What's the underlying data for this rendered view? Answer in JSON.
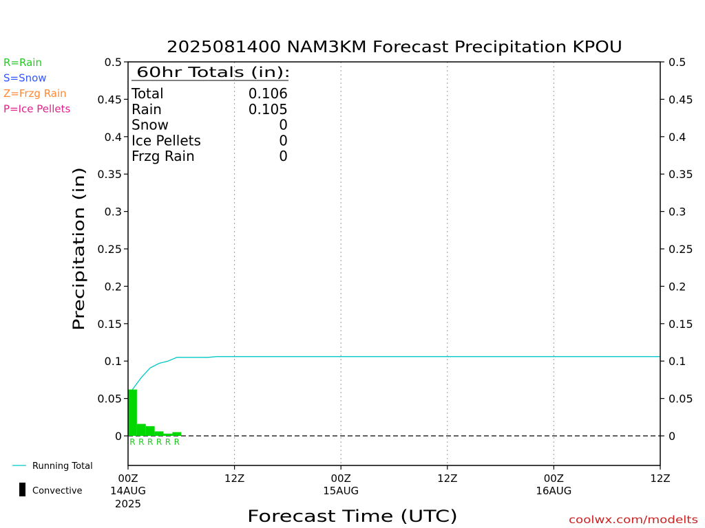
{
  "chart_data": {
    "type": "bar",
    "title": "2025081400 NAM3KM Forecast Precipitation KPOU",
    "xlabel": "Forecast Time (UTC)",
    "ylabel": "Precipitation (in)",
    "ylim": [
      0,
      0.5
    ],
    "xlim_hours": [
      0,
      60
    ],
    "grid": "vertical dotted at every 12 hours",
    "y_ticks": [
      "0",
      "0.05",
      "0.1",
      "0.15",
      "0.2",
      "0.25",
      "0.3",
      "0.35",
      "0.4",
      "0.45",
      "0.5"
    ],
    "x_ticks": [
      {
        "hour": 0,
        "label": "00Z",
        "date": "14AUG",
        "year": "2025"
      },
      {
        "hour": 12,
        "label": "12Z",
        "date": "",
        "year": ""
      },
      {
        "hour": 24,
        "label": "00Z",
        "date": "15AUG",
        "year": ""
      },
      {
        "hour": 36,
        "label": "12Z",
        "date": "",
        "year": ""
      },
      {
        "hour": 48,
        "label": "00Z",
        "date": "16AUG",
        "year": ""
      },
      {
        "hour": 60,
        "label": "12Z",
        "date": "",
        "year": ""
      }
    ],
    "legend": [
      {
        "label": "R=Rain",
        "color": "#22cc22"
      },
      {
        "label": "S=Snow",
        "color": "#3355ff"
      },
      {
        "label": "Z=Frzg Rain",
        "color": "#ff8833"
      },
      {
        "label": "P=Ice Pellets",
        "color": "#e0208c"
      }
    ],
    "series_legend": [
      {
        "label": "Running Total",
        "kind": "line",
        "color": "#00c8c8"
      },
      {
        "label": "Convective",
        "kind": "bar",
        "color": "#000000"
      }
    ],
    "bar_color": "#00d800",
    "bars": [
      {
        "hour": 1,
        "value": 0.062,
        "type": "R"
      },
      {
        "hour": 2,
        "value": 0.016,
        "type": "R"
      },
      {
        "hour": 3,
        "value": 0.013,
        "type": "R"
      },
      {
        "hour": 4,
        "value": 0.006,
        "type": "R"
      },
      {
        "hour": 5,
        "value": 0.003,
        "type": "R"
      },
      {
        "hour": 6,
        "value": 0.005,
        "type": "R"
      }
    ],
    "running_total_color": "#00c8c8",
    "running_total": [
      {
        "hour": 0.5,
        "value": 0.062
      },
      {
        "hour": 1.5,
        "value": 0.078
      },
      {
        "hour": 2.5,
        "value": 0.091
      },
      {
        "hour": 3.5,
        "value": 0.097
      },
      {
        "hour": 4.5,
        "value": 0.1
      },
      {
        "hour": 5.5,
        "value": 0.105
      },
      {
        "hour": 9.0,
        "value": 0.105
      },
      {
        "hour": 10.0,
        "value": 0.106
      },
      {
        "hour": 60.0,
        "value": 0.106
      }
    ],
    "totals_box": {
      "title": "60hr Totals (in):",
      "rows": [
        {
          "label": "Total",
          "value": "0.106"
        },
        {
          "label": "Rain",
          "value": "0.105"
        },
        {
          "label": "Snow",
          "value": "0"
        },
        {
          "label": "Ice Pellets",
          "value": "0"
        },
        {
          "label": "Frzg Rain",
          "value": "0"
        }
      ]
    },
    "credit": "coolwx.com/modelts"
  }
}
